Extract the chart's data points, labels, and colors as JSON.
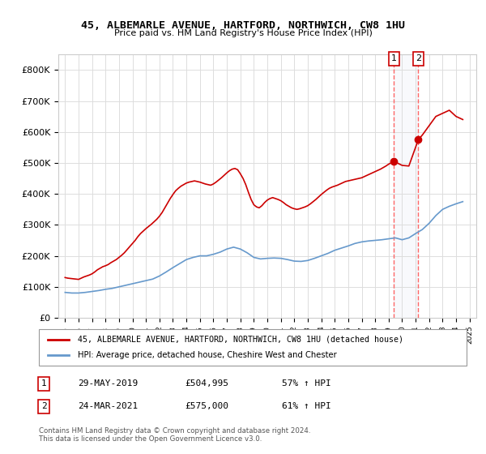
{
  "title": "45, ALBEMARLE AVENUE, HARTFORD, NORTHWICH, CW8 1HU",
  "subtitle": "Price paid vs. HM Land Registry's House Price Index (HPI)",
  "legend_line1": "45, ALBEMARLE AVENUE, HARTFORD, NORTHWICH, CW8 1HU (detached house)",
  "legend_line2": "HPI: Average price, detached house, Cheshire West and Chester",
  "annotation1_label": "1",
  "annotation1_date": "29-MAY-2019",
  "annotation1_price": "£504,995",
  "annotation1_hpi": "57% ↑ HPI",
  "annotation1_year": 2019.4,
  "annotation1_value": 504995,
  "annotation2_label": "2",
  "annotation2_date": "24-MAR-2021",
  "annotation2_price": "£575,000",
  "annotation2_hpi": "61% ↑ HPI",
  "annotation2_year": 2021.2,
  "annotation2_value": 575000,
  "footer": "Contains HM Land Registry data © Crown copyright and database right 2024.\nThis data is licensed under the Open Government Licence v3.0.",
  "red_color": "#cc0000",
  "blue_color": "#6699cc",
  "dashed_color": "#ff6666",
  "background_color": "#ffffff",
  "grid_color": "#dddddd",
  "ylim": [
    0,
    850000
  ],
  "xlim_start": 1994.5,
  "xlim_end": 2025.5,
  "red_data": {
    "years": [
      1995.0,
      1995.2,
      1995.4,
      1995.6,
      1995.8,
      1996.0,
      1996.2,
      1996.4,
      1996.6,
      1996.8,
      1997.0,
      1997.2,
      1997.4,
      1997.6,
      1997.8,
      1998.0,
      1998.2,
      1998.4,
      1998.6,
      1998.8,
      1999.0,
      1999.2,
      1999.4,
      1999.6,
      1999.8,
      2000.0,
      2000.2,
      2000.4,
      2000.6,
      2000.8,
      2001.0,
      2001.2,
      2001.4,
      2001.6,
      2001.8,
      2002.0,
      2002.2,
      2002.4,
      2002.6,
      2002.8,
      2003.0,
      2003.2,
      2003.4,
      2003.6,
      2003.8,
      2004.0,
      2004.2,
      2004.4,
      2004.6,
      2004.8,
      2005.0,
      2005.2,
      2005.4,
      2005.6,
      2005.8,
      2006.0,
      2006.2,
      2006.4,
      2006.6,
      2006.8,
      2007.0,
      2007.2,
      2007.4,
      2007.6,
      2007.8,
      2008.0,
      2008.2,
      2008.4,
      2008.6,
      2008.8,
      2009.0,
      2009.2,
      2009.4,
      2009.6,
      2009.8,
      2010.0,
      2010.2,
      2010.4,
      2010.6,
      2010.8,
      2011.0,
      2011.2,
      2011.4,
      2011.6,
      2011.8,
      2012.0,
      2012.2,
      2012.4,
      2012.6,
      2012.8,
      2013.0,
      2013.2,
      2013.4,
      2013.6,
      2013.8,
      2014.0,
      2014.2,
      2014.4,
      2014.6,
      2014.8,
      2015.0,
      2015.2,
      2015.4,
      2015.6,
      2015.8,
      2016.0,
      2016.2,
      2016.4,
      2016.6,
      2016.8,
      2017.0,
      2017.2,
      2017.4,
      2017.6,
      2017.8,
      2018.0,
      2018.2,
      2018.4,
      2018.6,
      2018.8,
      2019.0,
      2019.4,
      2020.0,
      2020.5,
      2021.2,
      2021.5,
      2022.0,
      2022.5,
      2023.0,
      2023.5,
      2024.0,
      2024.5
    ],
    "values": [
      130000,
      128000,
      127000,
      126000,
      125000,
      124000,
      128000,
      132000,
      135000,
      138000,
      142000,
      148000,
      155000,
      160000,
      165000,
      168000,
      172000,
      178000,
      183000,
      188000,
      195000,
      202000,
      210000,
      220000,
      230000,
      240000,
      250000,
      262000,
      272000,
      280000,
      288000,
      295000,
      302000,
      310000,
      318000,
      328000,
      340000,
      355000,
      370000,
      385000,
      398000,
      410000,
      418000,
      425000,
      430000,
      435000,
      438000,
      440000,
      442000,
      440000,
      438000,
      435000,
      432000,
      430000,
      428000,
      432000,
      438000,
      445000,
      452000,
      460000,
      468000,
      475000,
      480000,
      482000,
      478000,
      465000,
      450000,
      430000,
      405000,
      382000,
      365000,
      358000,
      355000,
      362000,
      372000,
      380000,
      385000,
      388000,
      385000,
      382000,
      378000,
      372000,
      365000,
      360000,
      355000,
      352000,
      350000,
      352000,
      355000,
      358000,
      362000,
      368000,
      375000,
      382000,
      390000,
      398000,
      405000,
      412000,
      418000,
      422000,
      425000,
      428000,
      432000,
      436000,
      440000,
      442000,
      444000,
      446000,
      448000,
      450000,
      452000,
      456000,
      460000,
      464000,
      468000,
      472000,
      476000,
      480000,
      485000,
      490000,
      496000,
      504995,
      492000,
      490000,
      575000,
      590000,
      620000,
      650000,
      660000,
      670000,
      650000,
      640000
    ]
  },
  "blue_data": {
    "years": [
      1995.0,
      1995.5,
      1996.0,
      1996.5,
      1997.0,
      1997.5,
      1998.0,
      1998.5,
      1999.0,
      1999.5,
      2000.0,
      2000.5,
      2001.0,
      2001.5,
      2002.0,
      2002.5,
      2003.0,
      2003.5,
      2004.0,
      2004.5,
      2005.0,
      2005.5,
      2006.0,
      2006.5,
      2007.0,
      2007.5,
      2008.0,
      2008.5,
      2009.0,
      2009.5,
      2010.0,
      2010.5,
      2011.0,
      2011.5,
      2012.0,
      2012.5,
      2013.0,
      2013.5,
      2014.0,
      2014.5,
      2015.0,
      2015.5,
      2016.0,
      2016.5,
      2017.0,
      2017.5,
      2018.0,
      2018.5,
      2019.0,
      2019.5,
      2020.0,
      2020.5,
      2021.0,
      2021.5,
      2022.0,
      2022.5,
      2023.0,
      2023.5,
      2024.0,
      2024.5
    ],
    "values": [
      82000,
      80000,
      80000,
      82000,
      85000,
      88000,
      92000,
      95000,
      100000,
      105000,
      110000,
      115000,
      120000,
      125000,
      135000,
      148000,
      162000,
      175000,
      188000,
      195000,
      200000,
      200000,
      205000,
      212000,
      222000,
      228000,
      222000,
      210000,
      195000,
      190000,
      192000,
      193000,
      192000,
      188000,
      183000,
      182000,
      185000,
      192000,
      200000,
      208000,
      218000,
      225000,
      232000,
      240000,
      245000,
      248000,
      250000,
      252000,
      255000,
      258000,
      252000,
      258000,
      272000,
      285000,
      305000,
      330000,
      350000,
      360000,
      368000,
      375000
    ]
  }
}
